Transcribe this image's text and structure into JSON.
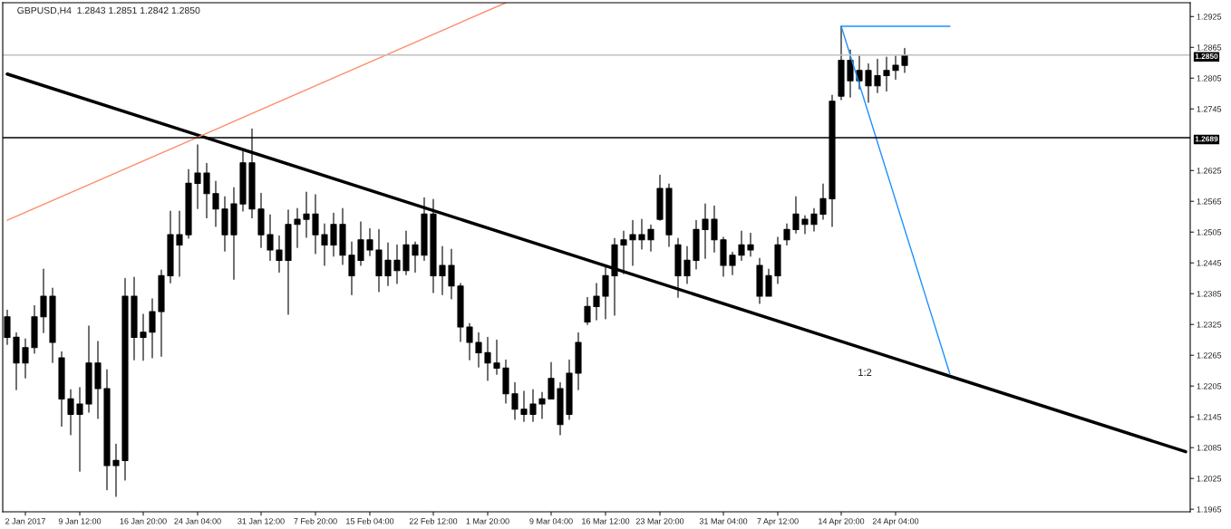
{
  "chart_data": {
    "type": "candlestick",
    "title": "GBPUSD,H4  1.2843 1.2851 1.2842 1.2850",
    "color": "#000000",
    "categories": [
      null,
      null,
      "2 Jan 2017",
      null,
      null,
      null,
      null,
      null,
      "9 Jan 12:00",
      null,
      null,
      null,
      null,
      null,
      null,
      "16 Jan 20:00",
      null,
      null,
      null,
      null,
      null,
      "24 Jan 04:00",
      null,
      null,
      null,
      null,
      null,
      null,
      "31 Jan 12:00",
      null,
      null,
      null,
      null,
      null,
      "7 Feb 20:00",
      null,
      null,
      null,
      null,
      null,
      "15 Feb 04:00",
      null,
      null,
      null,
      null,
      null,
      null,
      "22 Feb 12:00",
      null,
      null,
      null,
      null,
      null,
      "1 Mar 20:00",
      null,
      null,
      null,
      null,
      null,
      null,
      "9 Mar 04:00",
      null,
      null,
      null,
      null,
      null,
      "16 Mar 12:00",
      null,
      null,
      null,
      null,
      null,
      "23 Mar 20:00",
      null,
      null,
      null,
      null,
      null,
      null,
      "31 Mar 04:00",
      null,
      null,
      null,
      null,
      null,
      "7 Apr 12:00",
      null,
      null,
      null,
      null,
      null,
      null,
      "14 Apr 20:00",
      null,
      null,
      null,
      null,
      null,
      "24 Apr 04:00",
      null,
      null,
      null,
      null,
      null,
      null,
      null,
      null,
      null,
      null,
      null,
      null,
      null,
      null,
      null,
      null,
      null,
      null,
      null,
      null,
      null,
      null,
      null,
      null,
      null,
      null,
      null,
      null,
      null,
      null,
      null,
      null
    ],
    "ohlc": [
      [
        1.234,
        1.2353,
        1.2286,
        1.23
      ],
      [
        1.23,
        1.2309,
        1.2198,
        1.225
      ],
      [
        1.225,
        1.2297,
        1.2221,
        1.228
      ],
      [
        1.228,
        1.2362,
        1.2269,
        1.234
      ],
      [
        1.234,
        1.2433,
        1.2309,
        1.238
      ],
      [
        1.238,
        1.2396,
        1.2251,
        1.229
      ],
      [
        1.226,
        1.2272,
        1.2127,
        1.218
      ],
      [
        1.218,
        1.2198,
        1.211,
        1.215
      ],
      [
        1.215,
        1.2202,
        1.2039,
        1.217
      ],
      [
        1.217,
        1.2322,
        1.2154,
        1.225
      ],
      [
        1.225,
        1.2292,
        1.2142,
        1.22
      ],
      [
        1.22,
        1.2237,
        1.2003,
        1.205
      ],
      [
        1.205,
        1.2092,
        1.199,
        1.206
      ],
      [
        1.206,
        1.2415,
        1.2022,
        1.238
      ],
      [
        1.238,
        1.2417,
        1.2256,
        1.23
      ],
      [
        1.23,
        1.2345,
        1.2255,
        1.231
      ],
      [
        1.231,
        1.2375,
        1.226,
        1.235
      ],
      [
        1.235,
        1.2431,
        1.2263,
        1.242
      ],
      [
        1.242,
        1.2546,
        1.2406,
        1.25
      ],
      [
        1.25,
        1.2546,
        1.2419,
        1.248
      ],
      [
        1.25,
        1.2627,
        1.2493,
        1.26
      ],
      [
        1.26,
        1.2675,
        1.2551,
        1.262
      ],
      [
        1.262,
        1.2639,
        1.2533,
        1.258
      ],
      [
        1.258,
        1.2604,
        1.2516,
        1.255
      ],
      [
        1.255,
        1.2574,
        1.2468,
        1.25
      ],
      [
        1.25,
        1.2592,
        1.2413,
        1.256
      ],
      [
        1.256,
        1.2662,
        1.2546,
        1.264
      ],
      [
        1.264,
        1.2706,
        1.2533,
        1.255
      ],
      [
        1.255,
        1.2581,
        1.2475,
        1.25
      ],
      [
        1.25,
        1.2539,
        1.245,
        1.247
      ],
      [
        1.247,
        1.2498,
        1.2427,
        1.245
      ],
      [
        1.245,
        1.2548,
        1.2345,
        1.252
      ],
      [
        1.252,
        1.2551,
        1.2475,
        1.253
      ],
      [
        1.253,
        1.2583,
        1.2495,
        1.254
      ],
      [
        1.254,
        1.2578,
        1.2463,
        1.25
      ],
      [
        1.25,
        1.2521,
        1.244,
        1.248
      ],
      [
        1.248,
        1.2542,
        1.2458,
        1.252
      ],
      [
        1.252,
        1.2551,
        1.2442,
        1.246
      ],
      [
        1.246,
        1.2486,
        1.2383,
        1.242
      ],
      [
        1.245,
        1.2525,
        1.244,
        1.249
      ],
      [
        1.249,
        1.2512,
        1.2459,
        1.247
      ],
      [
        1.247,
        1.251,
        1.2389,
        1.242
      ],
      [
        1.242,
        1.2484,
        1.2401,
        1.245
      ],
      [
        1.245,
        1.248,
        1.2405,
        1.243
      ],
      [
        1.243,
        1.2507,
        1.2422,
        1.248
      ],
      [
        1.248,
        1.2486,
        1.2427,
        1.246
      ],
      [
        1.246,
        1.2572,
        1.245,
        1.254
      ],
      [
        1.254,
        1.2569,
        1.2387,
        1.242
      ],
      [
        1.242,
        1.2477,
        1.2383,
        1.244
      ],
      [
        1.244,
        1.2472,
        1.2375,
        1.24
      ],
      [
        1.24,
        1.2405,
        1.2292,
        1.232
      ],
      [
        1.232,
        1.2327,
        1.2256,
        1.229
      ],
      [
        1.229,
        1.2309,
        1.2242,
        1.227
      ],
      [
        1.227,
        1.23,
        1.2216,
        1.225
      ],
      [
        1.225,
        1.2295,
        1.2228,
        1.224
      ],
      [
        1.224,
        1.2256,
        1.2172,
        1.219
      ],
      [
        1.219,
        1.2212,
        1.214,
        1.216
      ],
      [
        1.216,
        1.2195,
        1.2136,
        1.215
      ],
      [
        1.215,
        1.2198,
        1.2136,
        1.217
      ],
      [
        1.217,
        1.2193,
        1.2142,
        1.218
      ],
      [
        1.218,
        1.2251,
        1.218,
        1.222
      ],
      [
        1.22,
        1.2212,
        1.211,
        1.213
      ],
      [
        1.215,
        1.2256,
        1.214,
        1.223
      ],
      [
        1.223,
        1.2309,
        1.2198,
        1.229
      ],
      [
        1.233,
        1.2378,
        1.2325,
        1.236
      ],
      [
        1.236,
        1.2405,
        1.2334,
        1.238
      ],
      [
        1.238,
        1.2436,
        1.2336,
        1.242
      ],
      [
        1.242,
        1.2493,
        1.2343,
        1.248
      ],
      [
        1.248,
        1.2507,
        1.2424,
        1.249
      ],
      [
        1.249,
        1.2528,
        1.244,
        1.25
      ],
      [
        1.25,
        1.253,
        1.2472,
        1.249
      ],
      [
        1.249,
        1.2519,
        1.2468,
        1.251
      ],
      [
        1.253,
        1.2616,
        1.2528,
        1.259
      ],
      [
        1.259,
        1.2599,
        1.2477,
        1.25
      ],
      [
        1.248,
        1.2493,
        1.2378,
        1.242
      ],
      [
        1.242,
        1.2477,
        1.2405,
        1.245
      ],
      [
        1.245,
        1.2528,
        1.2433,
        1.251
      ],
      [
        1.251,
        1.256,
        1.2454,
        1.253
      ],
      [
        1.253,
        1.2556,
        1.2466,
        1.249
      ],
      [
        1.249,
        1.2495,
        1.2419,
        1.244
      ],
      [
        1.244,
        1.2466,
        1.2422,
        1.246
      ],
      [
        1.246,
        1.2507,
        1.245,
        1.248
      ],
      [
        1.248,
        1.2503,
        1.2458,
        1.247
      ],
      [
        1.244,
        1.2454,
        1.2366,
        1.238
      ],
      [
        1.238,
        1.2433,
        1.238,
        1.242
      ],
      [
        1.242,
        1.2495,
        1.2405,
        1.248
      ],
      [
        1.249,
        1.2521,
        1.248,
        1.251
      ],
      [
        1.251,
        1.2574,
        1.2503,
        1.254
      ],
      [
        1.253,
        1.2537,
        1.2502,
        1.252
      ],
      [
        1.252,
        1.2551,
        1.2507,
        1.254
      ],
      [
        1.254,
        1.2599,
        1.253,
        1.257
      ],
      [
        1.257,
        1.2772,
        1.2516,
        1.276
      ],
      [
        1.277,
        1.2906,
        1.2763,
        1.284
      ],
      [
        1.284,
        1.286,
        1.2768,
        1.28
      ],
      [
        1.28,
        1.2848,
        1.2784,
        1.282
      ],
      [
        1.282,
        1.2833,
        1.2758,
        1.279
      ],
      [
        1.279,
        1.2842,
        1.2777,
        1.281
      ],
      [
        1.281,
        1.2846,
        1.278,
        1.282
      ],
      [
        1.282,
        1.2848,
        1.2803,
        1.283
      ],
      [
        1.283,
        1.2863,
        1.2816,
        1.285
      ],
      null,
      null,
      null,
      null,
      null,
      null,
      null,
      null,
      null,
      null,
      null,
      null,
      null,
      null,
      null,
      null,
      null,
      null,
      null,
      null,
      null,
      null,
      null,
      null,
      null,
      null,
      null,
      null,
      null,
      null,
      null
    ],
    "series": [
      {
        "type": "line",
        "color": "#000000",
        "values": [
          1.2813,
          null,
          null,
          null,
          null,
          null,
          null,
          null,
          null,
          null,
          null,
          null,
          null,
          null,
          null,
          null,
          null,
          null,
          null,
          null,
          null,
          null,
          null,
          null,
          null,
          null,
          null,
          null,
          null,
          null,
          null,
          null,
          null,
          null,
          null,
          null,
          null,
          null,
          null,
          null,
          null,
          null,
          null,
          null,
          null,
          null,
          null,
          null,
          null,
          null,
          null,
          null,
          null,
          null,
          null,
          null,
          null,
          null,
          null,
          null,
          null,
          null,
          null,
          null,
          null,
          null,
          null,
          null,
          null,
          null,
          null,
          null,
          null,
          null,
          null,
          null,
          null,
          null,
          null,
          null,
          null,
          null,
          null,
          null,
          null,
          null,
          null,
          null,
          null,
          null,
          null,
          null,
          null,
          null,
          null,
          null,
          null,
          null,
          null,
          null,
          null,
          null,
          null,
          null,
          null,
          null,
          null,
          null,
          null,
          null,
          null,
          null,
          null,
          null,
          null,
          null,
          null,
          null,
          null,
          null,
          null,
          null,
          null,
          null,
          null,
          null,
          null,
          null,
          null,
          null,
          1.2077
        ]
      },
      {
        "type": "line",
        "color": "#ff8c69",
        "values": [
          1.2528,
          null,
          null,
          null,
          null,
          null,
          null,
          null,
          null,
          null,
          null,
          null,
          null,
          null,
          null,
          null,
          null,
          null,
          null,
          null,
          null,
          null,
          null,
          null,
          null,
          null,
          null,
          null,
          null,
          null,
          null,
          null,
          null,
          null,
          null,
          null,
          null,
          null,
          null,
          null,
          null,
          null,
          null,
          null,
          null,
          null,
          null,
          null,
          null,
          null,
          null,
          null,
          null,
          null,
          null,
          1.2952,
          null,
          null,
          null,
          null,
          null,
          null,
          null,
          null,
          null,
          null,
          null,
          null,
          null,
          null,
          null,
          null,
          null,
          null,
          null,
          null,
          null,
          null,
          null,
          null,
          null,
          null,
          null,
          null,
          null,
          null,
          null,
          null,
          null,
          null,
          null,
          null,
          null,
          null,
          null,
          null,
          null,
          null,
          null,
          null,
          null,
          null,
          null,
          null,
          null,
          null,
          null,
          null,
          null,
          null,
          null,
          null,
          null,
          null,
          null,
          null,
          null,
          null,
          null,
          null,
          null,
          null,
          null,
          null,
          null,
          null,
          null,
          null,
          null,
          null,
          null
        ]
      },
      {
        "type": "line",
        "color": "#1e90ff",
        "values": [
          null,
          null,
          null,
          null,
          null,
          null,
          null,
          null,
          null,
          null,
          null,
          null,
          null,
          null,
          null,
          null,
          null,
          null,
          null,
          null,
          null,
          null,
          null,
          null,
          null,
          null,
          null,
          null,
          null,
          null,
          null,
          null,
          null,
          null,
          null,
          null,
          null,
          null,
          null,
          null,
          null,
          null,
          null,
          null,
          null,
          null,
          null,
          null,
          null,
          null,
          null,
          null,
          null,
          null,
          null,
          null,
          null,
          null,
          null,
          null,
          null,
          null,
          null,
          null,
          null,
          null,
          null,
          null,
          null,
          null,
          null,
          null,
          null,
          null,
          null,
          null,
          null,
          null,
          null,
          null,
          null,
          null,
          null,
          null,
          null,
          null,
          null,
          null,
          null,
          null,
          null,
          null,
          1.2906,
          null,
          null,
          null,
          null,
          null,
          null,
          null,
          null,
          null,
          null,
          null,
          1.2906,
          null,
          null,
          null,
          null,
          null,
          null,
          null,
          null,
          null,
          null,
          null,
          null,
          null,
          null,
          null,
          null,
          null,
          null,
          null,
          null,
          null,
          null,
          null,
          null,
          null,
          null
        ]
      },
      {
        "type": "line",
        "color": "#1e90ff",
        "values": [
          null,
          null,
          null,
          null,
          null,
          null,
          null,
          null,
          null,
          null,
          null,
          null,
          null,
          null,
          null,
          null,
          null,
          null,
          null,
          null,
          null,
          null,
          null,
          null,
          null,
          null,
          null,
          null,
          null,
          null,
          null,
          null,
          null,
          null,
          null,
          null,
          null,
          null,
          null,
          null,
          null,
          null,
          null,
          null,
          null,
          null,
          null,
          null,
          null,
          null,
          null,
          null,
          null,
          null,
          null,
          null,
          null,
          null,
          null,
          null,
          null,
          null,
          null,
          null,
          null,
          null,
          null,
          null,
          null,
          null,
          null,
          null,
          null,
          null,
          null,
          null,
          null,
          null,
          null,
          null,
          null,
          null,
          null,
          null,
          null,
          null,
          null,
          null,
          null,
          null,
          null,
          null,
          1.2906,
          null,
          null,
          null,
          null,
          null,
          null,
          null,
          null,
          null,
          null,
          null,
          1.2228,
          null,
          null,
          null,
          null,
          null,
          null,
          null,
          null,
          null,
          null,
          null,
          null,
          null,
          null,
          null,
          null,
          null,
          null,
          null,
          null,
          null,
          null,
          null,
          null,
          null,
          null
        ]
      }
    ],
    "ref_lines": [
      {
        "axis": "y",
        "value": 1.2689,
        "label": "1.2689",
        "color": "#000000"
      },
      {
        "axis": "y",
        "value": 1.285,
        "label": "1.2850",
        "color": "#c0c0c0"
      }
    ],
    "annotations": [
      "1:2"
    ],
    "ylim": [
      1.196,
      1.2952
    ],
    "yticks": [
      1.1965,
      1.2025,
      1.2085,
      1.2145,
      1.2205,
      1.2265,
      1.2325,
      1.2385,
      1.2445,
      1.2505,
      1.2565,
      1.2625,
      1.2745,
      1.2805,
      1.2865,
      1.2925
    ],
    "grid": false,
    "legend": false
  }
}
